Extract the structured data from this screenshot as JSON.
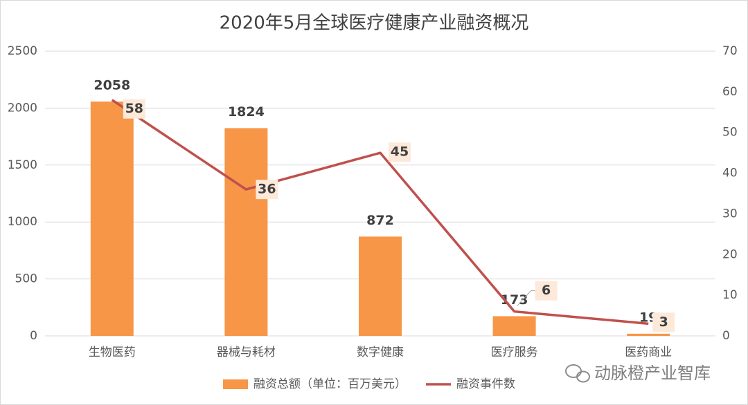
{
  "chart_data": {
    "type": "combo",
    "title": "2020年5月全球医疗健康产业融资概况",
    "categories": [
      "生物医药",
      "器械与耗材",
      "数字健康",
      "医疗服务",
      "医药商业"
    ],
    "series": [
      {
        "name": "融资总额（单位：百万美元）",
        "type": "bar",
        "color": "#f79646",
        "values": [
          2058,
          1824,
          872,
          173,
          19
        ]
      },
      {
        "name": "融资事件数",
        "type": "line",
        "axis": "y2",
        "color": "#c0504d",
        "values": [
          58,
          36,
          45,
          6,
          3
        ]
      }
    ],
    "ylim": [
      0,
      2500
    ],
    "yticks": [
      0,
      500,
      1000,
      1500,
      2000,
      2500
    ],
    "y2lim": [
      0,
      70
    ],
    "y2ticks": [
      0,
      10,
      20,
      30,
      40,
      50,
      60,
      70
    ],
    "grid": true,
    "legend": "bottom",
    "watermark": "动脉橙产业智库"
  }
}
